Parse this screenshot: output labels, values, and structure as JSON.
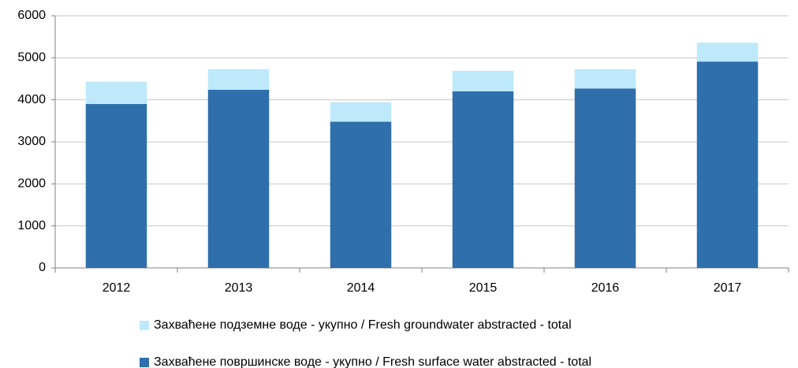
{
  "chart_data": {
    "type": "stacked_bar",
    "categories": [
      "2012",
      "2013",
      "2014",
      "2015",
      "2016",
      "2017"
    ],
    "series": [
      {
        "name": "Захваћене површинске воде - укупно / Fresh surface water abstracted - total",
        "color": "#2e6fac",
        "values": [
          3900,
          4240,
          3480,
          4200,
          4270,
          4910
        ]
      },
      {
        "name": "Захваћене подземне воде - укупно / Fresh groundwater abstracted - total",
        "color": "#bde9fb",
        "values": [
          530,
          490,
          460,
          490,
          460,
          450
        ]
      }
    ],
    "ylim": [
      0,
      6000
    ],
    "yticks": [
      0,
      1000,
      2000,
      3000,
      4000,
      5000,
      6000
    ],
    "grid": true,
    "legend": "bottom"
  }
}
